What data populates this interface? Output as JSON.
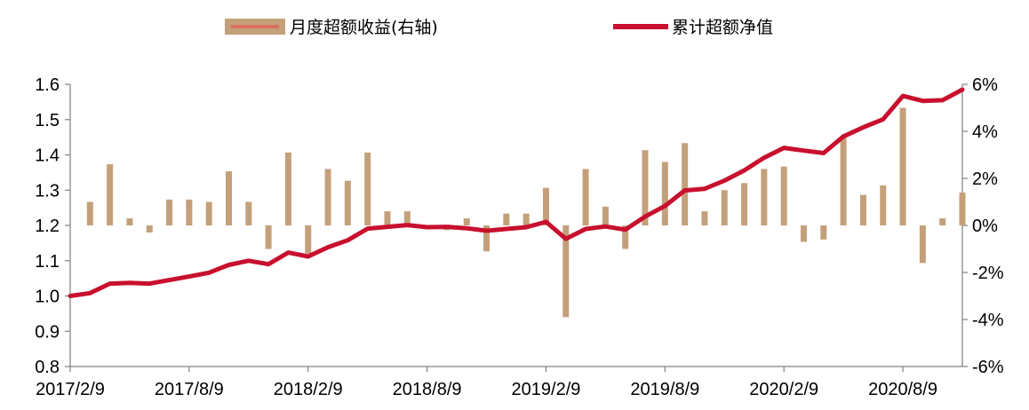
{
  "chart_data": {
    "type": "bar+line",
    "legend": {
      "position": "top-center",
      "items": [
        {
          "label": "月度超额收益(右轴)",
          "type": "bar",
          "color": "#C4A07A"
        },
        {
          "label": "累计超额净值",
          "type": "line",
          "color": "#C8102E"
        }
      ]
    },
    "x_tick_labels": [
      "2017/2/9",
      "2017/8/9",
      "2018/2/9",
      "2018/8/9",
      "2019/2/9",
      "2019/8/9",
      "2020/2/9",
      "2020/8/9"
    ],
    "left_axis": {
      "min": 0.8,
      "max": 1.6,
      "step": 0.1,
      "tick_labels": [
        "0.8",
        "0.9",
        "1.0",
        "1.1",
        "1.2",
        "1.3",
        "1.4",
        "1.5",
        "1.6"
      ]
    },
    "right_axis": {
      "min": -6,
      "max": 6,
      "step": 2,
      "tick_labels": [
        "-6%",
        "-4%",
        "-2%",
        "0%",
        "2%",
        "4%",
        "6%"
      ]
    },
    "series": [
      {
        "name": "月度超额收益(右轴)",
        "type": "bar",
        "axis": "right",
        "unit": "%",
        "values": [
          1.0,
          2.6,
          0.3,
          -0.3,
          1.1,
          1.1,
          1.0,
          2.3,
          1.0,
          -1.0,
          3.1,
          -1.2,
          2.4,
          1.9,
          3.1,
          0.6,
          0.6,
          -0.1,
          -0.2,
          0.3,
          -1.1,
          0.5,
          0.5,
          1.6,
          -3.9,
          2.4,
          0.8,
          -1.0,
          3.2,
          2.7,
          3.5,
          0.6,
          1.5,
          1.8,
          2.4,
          2.5,
          -0.7,
          -0.6,
          3.8,
          1.3,
          1.7,
          5.0,
          -1.6,
          0.3,
          1.4
        ]
      },
      {
        "name": "累计超额净值",
        "type": "line",
        "axis": "left",
        "values": [
          1.0,
          1.008,
          1.035,
          1.037,
          1.035,
          1.045,
          1.055,
          1.066,
          1.088,
          1.1,
          1.09,
          1.123,
          1.112,
          1.138,
          1.158,
          1.191,
          1.196,
          1.201,
          1.195,
          1.196,
          1.192,
          1.185,
          1.19,
          1.195,
          1.21,
          1.162,
          1.19,
          1.197,
          1.188,
          1.225,
          1.255,
          1.299,
          1.304,
          1.327,
          1.356,
          1.392,
          1.42,
          1.412,
          1.405,
          1.452,
          1.478,
          1.501,
          1.567,
          1.553,
          1.555,
          1.585
        ]
      }
    ]
  }
}
